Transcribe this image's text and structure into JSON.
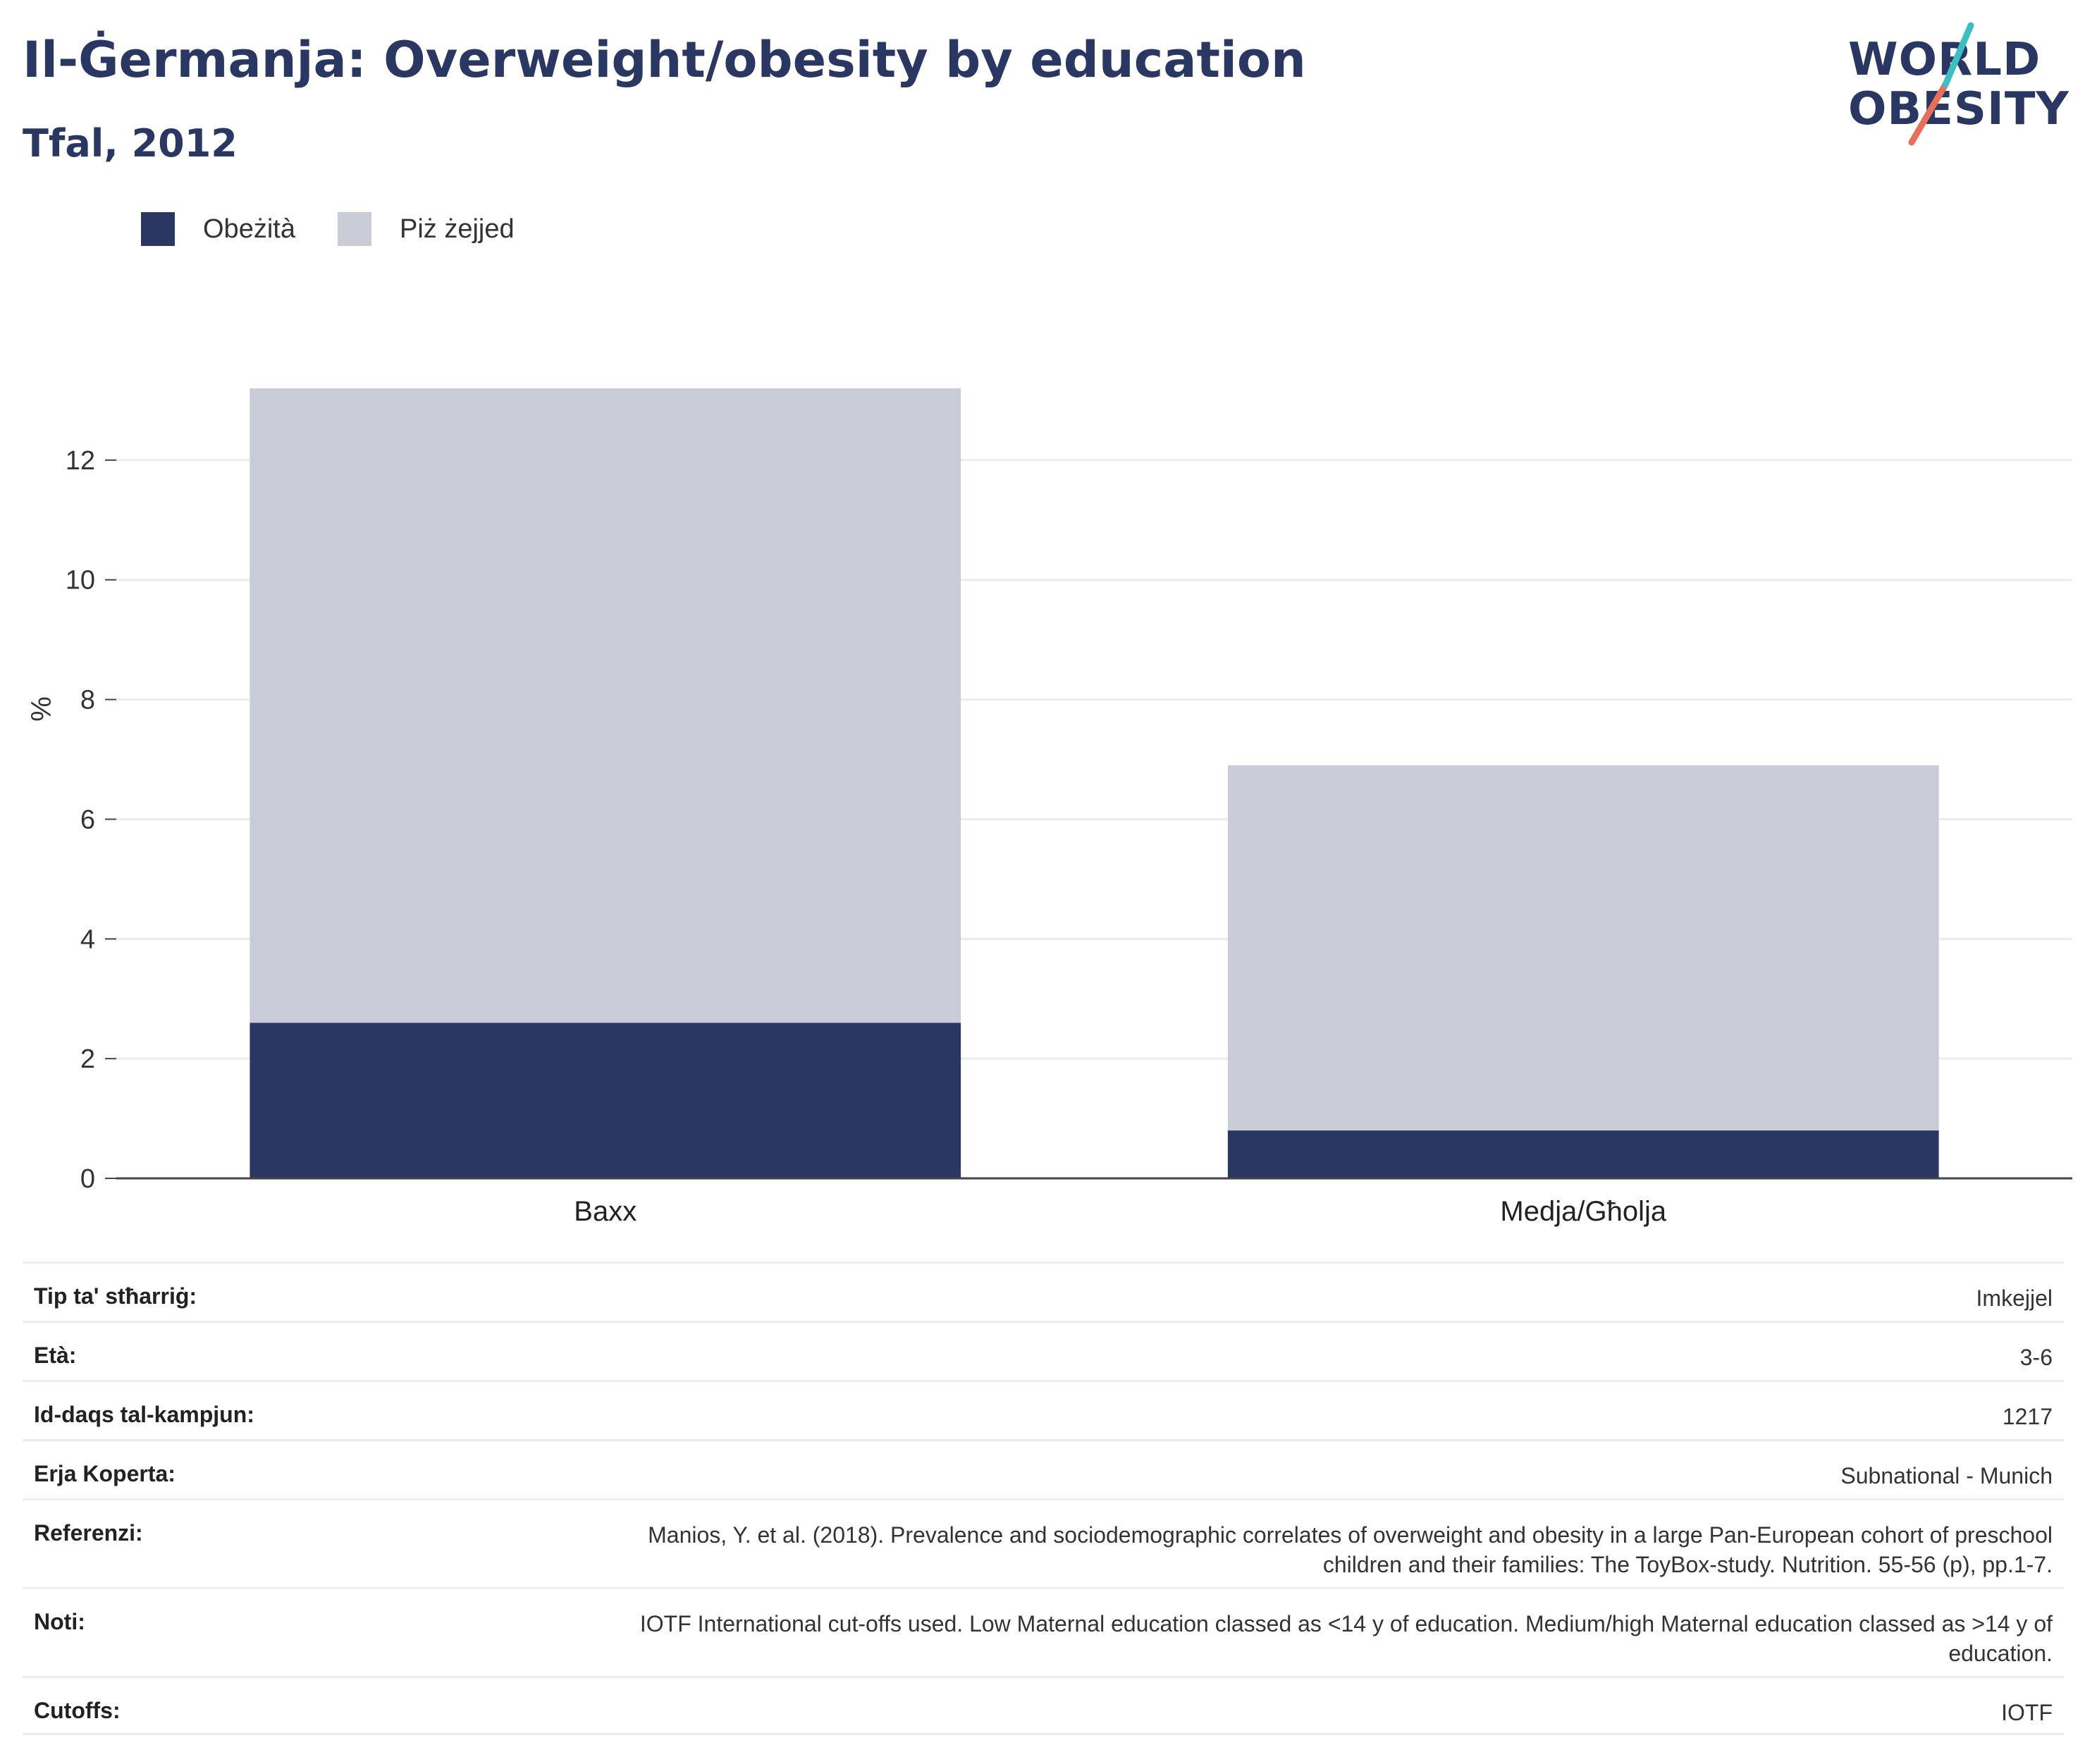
{
  "title": "Il-Ġermanja: Overweight/obesity by education",
  "subtitle": "Tfal, 2012",
  "logo": {
    "line1": "WORLD",
    "line2": "OBESITY"
  },
  "colors": {
    "obese": "#2b3763",
    "overweight": "#c9ccd7",
    "title": "#2b3763",
    "logo_teal": "#3bbfc2",
    "logo_red": "#e8705a"
  },
  "chart_data": {
    "type": "bar",
    "stacked": true,
    "categories": [
      "Baxx",
      "Medja/Għolja"
    ],
    "series": [
      {
        "name": "Obeżità",
        "values": [
          2.6,
          0.8
        ]
      },
      {
        "name": "Piż żejjed",
        "values": [
          10.6,
          6.1
        ]
      }
    ],
    "ylabel": "%",
    "ylim": [
      0,
      13.8
    ],
    "yticks": [
      0,
      2,
      4,
      6,
      8,
      10,
      12
    ],
    "grid": true,
    "legend_position": "top-left"
  },
  "info": [
    {
      "label": "Tip ta' stħarriġ:",
      "value": "Imkejjel"
    },
    {
      "label": "Età:",
      "value": "3-6"
    },
    {
      "label": "Id-daqs tal-kampjun:",
      "value": "1217"
    },
    {
      "label": "Erja Koperta:",
      "value": "Subnational - Munich"
    },
    {
      "label": "Referenzi:",
      "value": "Manios, Y. et al. (2018). Prevalence and sociodemographic correlates of overweight and obesity in a large Pan-European cohort of preschool children and their families: The ToyBox-study. Nutrition. 55-56 (p), pp.1-7."
    },
    {
      "label": "Noti:",
      "value": "IOTF International cut-offs used. Low Maternal education classed as <14 y of education. Medium/high Maternal education classed as >14 y of education."
    },
    {
      "label": "Cutoffs:",
      "value": "IOTF"
    }
  ]
}
